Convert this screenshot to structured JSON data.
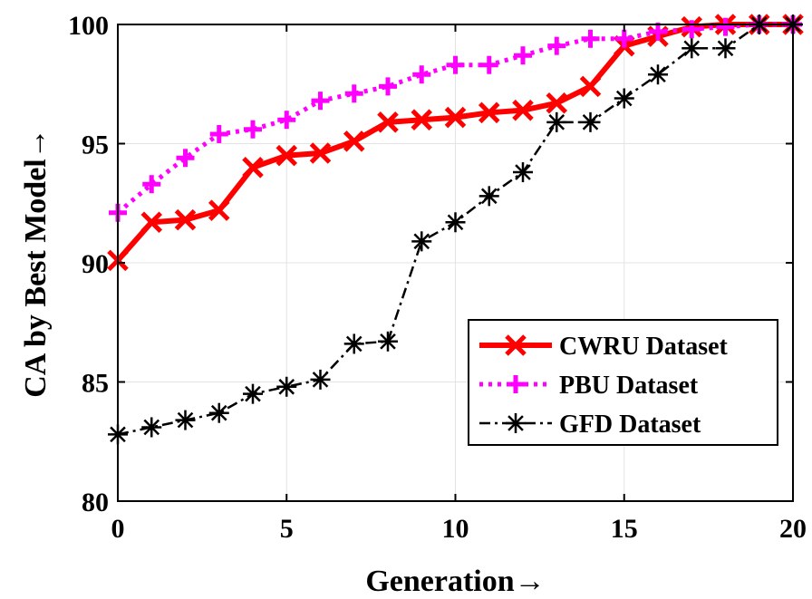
{
  "chart_data": {
    "type": "line",
    "xlabel": "Generation→",
    "ylabel": "CA by Best Model→",
    "xlim": [
      0,
      20
    ],
    "ylim": [
      80,
      100
    ],
    "xticks": [
      "0",
      "5",
      "10",
      "15",
      "20"
    ],
    "yticks": [
      "80",
      "85",
      "90",
      "95",
      "100"
    ],
    "grid": true,
    "legend_position": "lower-right",
    "x": [
      0,
      1,
      2,
      3,
      4,
      5,
      6,
      7,
      8,
      9,
      10,
      11,
      12,
      13,
      14,
      15,
      16,
      17,
      18,
      19,
      20
    ],
    "series": [
      {
        "name": "CWRU Dataset",
        "color": "#ff0000",
        "marker": "x",
        "line_style": "solid",
        "values": [
          90.1,
          91.7,
          91.8,
          92.2,
          94.0,
          94.5,
          94.6,
          95.1,
          95.9,
          96.0,
          96.1,
          96.3,
          96.4,
          96.7,
          97.4,
          99.1,
          99.5,
          99.9,
          100.0,
          100.0,
          100.0
        ]
      },
      {
        "name": "PBU Dataset",
        "color": "#ff00ff",
        "marker": "+",
        "line_style": "dotted",
        "values": [
          92.1,
          93.3,
          94.4,
          95.4,
          95.6,
          96.0,
          96.8,
          97.1,
          97.4,
          97.9,
          98.3,
          98.3,
          98.7,
          99.1,
          99.4,
          99.4,
          99.7,
          99.8,
          99.9,
          100.0,
          100.0
        ]
      },
      {
        "name": "GFD Dataset",
        "color": "#000000",
        "marker": "asterisk",
        "line_style": "dashdot",
        "values": [
          82.8,
          83.1,
          83.4,
          83.7,
          84.5,
          84.8,
          85.1,
          86.6,
          86.7,
          90.9,
          91.7,
          92.8,
          93.8,
          95.9,
          95.9,
          96.9,
          97.9,
          99.0,
          99.0,
          100.0,
          100.0
        ]
      }
    ]
  }
}
